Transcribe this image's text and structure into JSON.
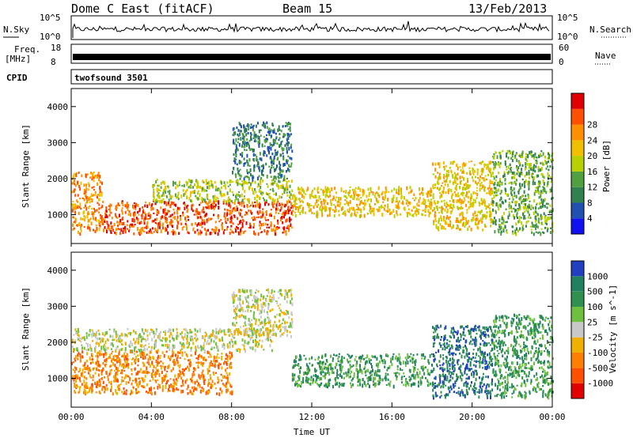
{
  "header": {
    "radar": "Dome C East (fitACF)",
    "beam": "Beam 15",
    "date": "13/Feb/2013"
  },
  "param_panels": {
    "nsky": {
      "label": "N.Sky",
      "ticks": [
        "10^5",
        "10^0"
      ]
    },
    "nsearch": {
      "label": "N.Search",
      "ticks": [
        "10^5",
        "10^0"
      ]
    },
    "freq": {
      "label_line1": "Freq.",
      "label_line2": "[MHz]",
      "ticks": [
        "18",
        "8"
      ]
    },
    "nave": {
      "label": "Nave",
      "ticks": [
        "60",
        "0"
      ]
    },
    "cpid": {
      "label": "CPID",
      "value": "twofsound 3501"
    }
  },
  "chart_data": [
    {
      "type": "heatmap",
      "name": "power-panel",
      "ylabel": "Slant Range [km]",
      "xlabel": "",
      "x_range_hours": [
        0,
        24
      ],
      "ylim": [
        200,
        4500
      ],
      "yticks": [
        "1000",
        "2000",
        "3000",
        "4000"
      ],
      "colorbar": {
        "label": "Power [dB]",
        "levels": [
          "4",
          "8",
          "12",
          "16",
          "20",
          "24",
          "28"
        ],
        "colors": [
          "#1010f0",
          "#2050b0",
          "#308050",
          "#50a040",
          "#b8d000",
          "#f0c000",
          "#ff9000",
          "#ff5000",
          "#e00000"
        ]
      },
      "bands": [
        {
          "x": [
            0,
            1.5
          ],
          "y": [
            500,
            2200
          ],
          "level": 6
        },
        {
          "x": [
            1.5,
            11
          ],
          "y": [
            500,
            1400
          ],
          "level": 7
        },
        {
          "x": [
            4,
            11
          ],
          "y": [
            1400,
            2000
          ],
          "level": 4
        },
        {
          "x": [
            8,
            11
          ],
          "y": [
            2000,
            3600
          ],
          "level": 2
        },
        {
          "x": [
            11,
            18
          ],
          "y": [
            1000,
            1800
          ],
          "level": 5
        },
        {
          "x": [
            18,
            21
          ],
          "y": [
            600,
            2500
          ],
          "level": 5
        },
        {
          "x": [
            21,
            24
          ],
          "y": [
            500,
            2800
          ],
          "level": 3
        }
      ]
    },
    {
      "type": "heatmap",
      "name": "velocity-panel",
      "ylabel": "Slant Range [km]",
      "xlabel": "Time UT",
      "x_range_hours": [
        0,
        24
      ],
      "ylim": [
        200,
        4500
      ],
      "yticks": [
        "1000",
        "2000",
        "3000",
        "4000"
      ],
      "xticks": [
        "00:00",
        "04:00",
        "08:00",
        "12:00",
        "16:00",
        "20:00",
        "00:00"
      ],
      "colorbar": {
        "label": "Velocity [m s^-1]",
        "levels": [
          "1000",
          "500",
          "100",
          "25",
          "-25",
          "-100",
          "-500",
          "-1000"
        ],
        "colors": [
          "#2040c0",
          "#208060",
          "#309050",
          "#70c040",
          "#c8c8c8",
          "#f0b000",
          "#ff8000",
          "#ff5000",
          "#e00000"
        ]
      },
      "bands": [
        {
          "x": [
            0,
            8
          ],
          "y": [
            600,
            1800
          ],
          "level": 6
        },
        {
          "x": [
            0,
            10
          ],
          "y": [
            1800,
            2400
          ],
          "level": 4
        },
        {
          "x": [
            8,
            11
          ],
          "y": [
            2200,
            3500
          ],
          "level": 4
        },
        {
          "x": [
            11,
            18
          ],
          "y": [
            800,
            1700
          ],
          "level": 2
        },
        {
          "x": [
            18,
            21
          ],
          "y": [
            500,
            2500
          ],
          "level": 1
        },
        {
          "x": [
            21,
            24
          ],
          "y": [
            500,
            2800
          ],
          "level": 2
        }
      ]
    }
  ]
}
